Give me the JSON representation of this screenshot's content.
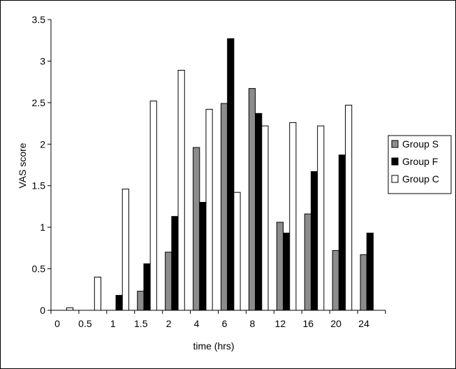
{
  "chart_data": {
    "type": "bar",
    "title": "",
    "xlabel": "time (hrs)",
    "ylabel": "VAS score",
    "categories": [
      "0",
      "0.5",
      "1",
      "1.5",
      "2",
      "4",
      "6",
      "8",
      "12",
      "16",
      "20",
      "24"
    ],
    "ylim": [
      0,
      3.5
    ],
    "yticks": [
      "0",
      "0.5",
      "1",
      "1.5",
      "2",
      "2.5",
      "3",
      "3.5"
    ],
    "grid": false,
    "legend_position": "right",
    "series": [
      {
        "name": "Group S",
        "color": "#8c8c8c",
        "values": [
          0,
          0,
          0,
          0.23,
          0.7,
          1.96,
          2.49,
          2.67,
          1.06,
          1.16,
          0.72,
          0.67
        ]
      },
      {
        "name": "Group F",
        "color": "#000000",
        "values": [
          0,
          0,
          0.18,
          0.56,
          1.13,
          1.3,
          3.27,
          2.37,
          0.93,
          1.67,
          1.87,
          0.93
        ]
      },
      {
        "name": "Group C",
        "color": "#ffffff",
        "values": [
          0.03,
          0.4,
          1.46,
          2.52,
          2.89,
          2.42,
          1.42,
          2.22,
          2.26,
          2.22,
          2.47,
          null
        ]
      }
    ]
  }
}
